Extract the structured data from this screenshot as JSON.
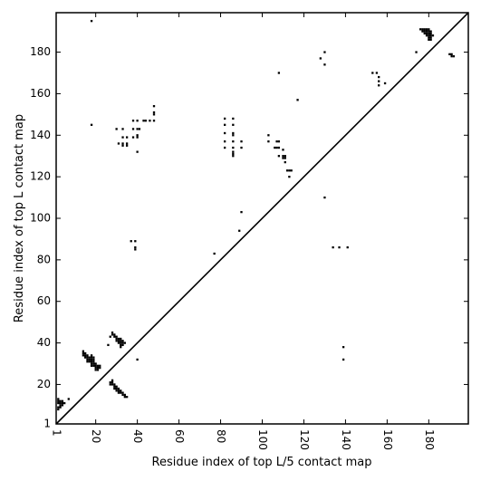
{
  "chart_data": {
    "type": "scatter",
    "title": "",
    "xlabel": "Residue index of top L/5 contact map",
    "ylabel": "Residue index of top L contact map",
    "xlim": [
      1,
      199
    ],
    "ylim": [
      1,
      199
    ],
    "xticks": [
      1,
      20,
      40,
      60,
      80,
      100,
      120,
      140,
      160,
      180
    ],
    "yticks": [
      1,
      20,
      40,
      60,
      80,
      100,
      120,
      140,
      160,
      180
    ],
    "grid": false,
    "diagonal": true,
    "series": [
      {
        "color": "#000000",
        "points": [
          [
            18,
            195
          ],
          [
            18,
            145
          ],
          [
            130,
            180
          ],
          [
            128,
            177
          ],
          [
            130,
            174
          ],
          [
            108,
            170
          ],
          [
            117,
            157
          ],
          [
            153,
            170
          ],
          [
            155,
            170
          ],
          [
            156,
            168
          ],
          [
            156,
            166
          ],
          [
            156,
            164
          ],
          [
            159,
            165
          ],
          [
            174,
            180
          ],
          [
            176,
            191
          ],
          [
            177,
            191
          ],
          [
            178,
            191
          ],
          [
            179,
            191
          ],
          [
            180,
            191
          ],
          [
            177,
            190
          ],
          [
            178,
            190
          ],
          [
            179,
            190
          ],
          [
            180,
            190
          ],
          [
            181,
            190
          ],
          [
            178,
            189
          ],
          [
            179,
            189
          ],
          [
            180,
            189
          ],
          [
            181,
            189
          ],
          [
            179,
            188
          ],
          [
            180,
            188
          ],
          [
            181,
            188
          ],
          [
            182,
            188
          ],
          [
            180,
            187
          ],
          [
            181,
            187
          ],
          [
            180,
            186
          ],
          [
            181,
            186
          ],
          [
            190,
            179
          ],
          [
            191,
            179
          ],
          [
            191,
            178
          ],
          [
            192,
            178
          ],
          [
            48,
            154
          ],
          [
            48,
            151
          ],
          [
            48,
            150
          ],
          [
            38,
            147
          ],
          [
            40,
            147
          ],
          [
            43,
            147
          ],
          [
            44,
            147
          ],
          [
            46,
            147
          ],
          [
            48,
            147
          ],
          [
            30,
            143
          ],
          [
            33,
            143
          ],
          [
            38,
            143
          ],
          [
            40,
            143
          ],
          [
            41,
            143
          ],
          [
            33,
            139
          ],
          [
            35,
            139
          ],
          [
            38,
            139
          ],
          [
            40,
            139
          ],
          [
            40,
            140
          ],
          [
            31,
            136
          ],
          [
            33,
            136
          ],
          [
            33,
            135
          ],
          [
            35,
            136
          ],
          [
            35,
            135
          ],
          [
            40,
            132
          ],
          [
            82,
            148
          ],
          [
            86,
            148
          ],
          [
            82,
            145
          ],
          [
            86,
            145
          ],
          [
            82,
            141
          ],
          [
            86,
            141
          ],
          [
            86,
            140
          ],
          [
            82,
            137
          ],
          [
            86,
            137
          ],
          [
            90,
            137
          ],
          [
            82,
            134
          ],
          [
            86,
            134
          ],
          [
            90,
            134
          ],
          [
            86,
            132
          ],
          [
            86,
            131
          ],
          [
            86,
            130
          ],
          [
            103,
            140
          ],
          [
            103,
            137
          ],
          [
            107,
            137
          ],
          [
            108,
            137
          ],
          [
            106,
            134
          ],
          [
            107,
            134
          ],
          [
            108,
            134
          ],
          [
            110,
            133
          ],
          [
            110,
            130
          ],
          [
            111,
            130
          ],
          [
            108,
            130
          ],
          [
            110,
            129
          ],
          [
            111,
            129
          ],
          [
            111,
            127
          ],
          [
            112,
            123
          ],
          [
            113,
            123
          ],
          [
            114,
            123
          ],
          [
            113,
            120
          ],
          [
            130,
            110
          ],
          [
            90,
            103
          ],
          [
            89,
            94
          ],
          [
            37,
            89
          ],
          [
            39,
            89
          ],
          [
            39,
            86
          ],
          [
            39,
            85
          ],
          [
            77,
            83
          ],
          [
            134,
            86
          ],
          [
            137,
            86
          ],
          [
            141,
            86
          ],
          [
            139,
            38
          ],
          [
            139,
            32
          ],
          [
            40,
            32
          ],
          [
            28,
            45
          ],
          [
            28,
            44
          ],
          [
            29,
            44
          ],
          [
            27,
            43
          ],
          [
            29,
            43
          ],
          [
            30,
            43
          ],
          [
            30,
            42
          ],
          [
            31,
            42
          ],
          [
            32,
            42
          ],
          [
            30,
            41
          ],
          [
            31,
            41
          ],
          [
            32,
            41
          ],
          [
            33,
            41
          ],
          [
            31,
            40
          ],
          [
            32,
            40
          ],
          [
            33,
            40
          ],
          [
            34,
            40
          ],
          [
            32,
            39
          ],
          [
            33,
            39
          ],
          [
            26,
            39
          ],
          [
            32,
            38
          ],
          [
            14,
            36
          ],
          [
            14,
            35
          ],
          [
            15,
            35
          ],
          [
            14,
            34
          ],
          [
            15,
            34
          ],
          [
            16,
            34
          ],
          [
            18,
            34
          ],
          [
            15,
            33
          ],
          [
            16,
            33
          ],
          [
            17,
            33
          ],
          [
            18,
            33
          ],
          [
            19,
            33
          ],
          [
            16,
            32
          ],
          [
            17,
            32
          ],
          [
            18,
            32
          ],
          [
            19,
            32
          ],
          [
            16,
            31
          ],
          [
            17,
            31
          ],
          [
            18,
            31
          ],
          [
            19,
            31
          ],
          [
            18,
            30
          ],
          [
            19,
            30
          ],
          [
            20,
            30
          ],
          [
            18,
            29
          ],
          [
            19,
            29
          ],
          [
            20,
            29
          ],
          [
            21,
            29
          ],
          [
            22,
            29
          ],
          [
            20,
            28
          ],
          [
            21,
            28
          ],
          [
            22,
            28
          ],
          [
            20,
            27
          ],
          [
            21,
            27
          ],
          [
            28,
            22
          ],
          [
            27,
            21
          ],
          [
            28,
            21
          ],
          [
            27,
            20
          ],
          [
            28,
            20
          ],
          [
            29,
            20
          ],
          [
            29,
            19
          ],
          [
            30,
            19
          ],
          [
            29,
            18
          ],
          [
            30,
            18
          ],
          [
            31,
            18
          ],
          [
            30,
            17
          ],
          [
            31,
            17
          ],
          [
            32,
            17
          ],
          [
            31,
            16
          ],
          [
            32,
            16
          ],
          [
            33,
            16
          ],
          [
            33,
            15
          ],
          [
            34,
            15
          ],
          [
            34,
            14
          ],
          [
            35,
            14
          ],
          [
            2,
            13
          ],
          [
            4,
            12
          ],
          [
            7,
            13
          ],
          [
            2,
            12
          ],
          [
            3,
            12
          ],
          [
            2,
            11
          ],
          [
            3,
            11
          ],
          [
            4,
            11
          ],
          [
            5,
            11
          ],
          [
            3,
            10
          ],
          [
            4,
            10
          ],
          [
            2,
            9
          ],
          [
            3,
            9
          ],
          [
            2,
            8
          ]
        ]
      }
    ]
  }
}
